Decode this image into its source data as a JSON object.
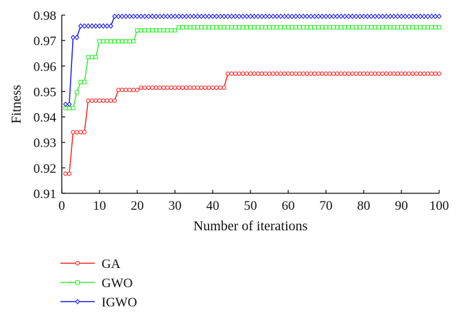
{
  "chart_data": {
    "type": "line",
    "title": "",
    "xlabel": "Number of iterations",
    "ylabel": "Fitness",
    "xlim": [
      0,
      100
    ],
    "ylim": [
      0.91,
      0.98
    ],
    "xticks": [
      "0",
      "10",
      "20",
      "30",
      "40",
      "50",
      "60",
      "70",
      "80",
      "90",
      "100"
    ],
    "yticks": [
      "0.91",
      "0.92",
      "0.93",
      "0.94",
      "0.95",
      "0.96",
      "0.97",
      "0.98"
    ],
    "grid": false,
    "legend_position": "bottom-left",
    "x": [
      1,
      2,
      3,
      4,
      5,
      6,
      7,
      8,
      9,
      10,
      11,
      12,
      13,
      14,
      15,
      16,
      17,
      18,
      19,
      20,
      21,
      22,
      23,
      24,
      25,
      26,
      27,
      28,
      29,
      30,
      31,
      32,
      33,
      34,
      35,
      36,
      37,
      38,
      39,
      40,
      41,
      42,
      43,
      44,
      45,
      46,
      47,
      48,
      49,
      50,
      51,
      52,
      53,
      54,
      55,
      56,
      57,
      58,
      59,
      60,
      61,
      62,
      63,
      64,
      65,
      66,
      67,
      68,
      69,
      70,
      71,
      72,
      73,
      74,
      75,
      76,
      77,
      78,
      79,
      80,
      81,
      82,
      83,
      84,
      85,
      86,
      87,
      88,
      89,
      90,
      91,
      92,
      93,
      94,
      95,
      96,
      97,
      98,
      99,
      100
    ],
    "series": [
      {
        "name": "GA",
        "color": "#ff2020",
        "marker": "circle",
        "values": [
          0.9177,
          0.9177,
          0.934,
          0.934,
          0.934,
          0.934,
          0.9464,
          0.9464,
          0.9464,
          0.9464,
          0.9464,
          0.9464,
          0.9464,
          0.9464,
          0.9506,
          0.9506,
          0.9506,
          0.9506,
          0.9506,
          0.9506,
          0.9515,
          0.9515,
          0.9515,
          0.9515,
          0.9515,
          0.9515,
          0.9515,
          0.9515,
          0.9515,
          0.9515,
          0.9515,
          0.9515,
          0.9515,
          0.9515,
          0.9515,
          0.9515,
          0.9515,
          0.9515,
          0.9515,
          0.9515,
          0.9515,
          0.9515,
          0.9515,
          0.957,
          0.957,
          0.957,
          0.957,
          0.957,
          0.957,
          0.957,
          0.957,
          0.957,
          0.957,
          0.957,
          0.957,
          0.957,
          0.957,
          0.957,
          0.957,
          0.957,
          0.957,
          0.957,
          0.957,
          0.957,
          0.957,
          0.957,
          0.957,
          0.957,
          0.957,
          0.957,
          0.957,
          0.957,
          0.957,
          0.957,
          0.957,
          0.957,
          0.957,
          0.957,
          0.957,
          0.957,
          0.957,
          0.957,
          0.957,
          0.957,
          0.957,
          0.957,
          0.957,
          0.957,
          0.957,
          0.957,
          0.957,
          0.957,
          0.957,
          0.957,
          0.957,
          0.957,
          0.957,
          0.957,
          0.957,
          0.957
        ]
      },
      {
        "name": "GWO",
        "color": "#33ee33",
        "marker": "square",
        "values": [
          0.9435,
          0.9435,
          0.9435,
          0.9497,
          0.9537,
          0.9537,
          0.9635,
          0.9635,
          0.9635,
          0.9697,
          0.9697,
          0.9697,
          0.9697,
          0.9697,
          0.9697,
          0.9697,
          0.9697,
          0.9697,
          0.9697,
          0.974,
          0.974,
          0.974,
          0.974,
          0.974,
          0.974,
          0.974,
          0.974,
          0.974,
          0.974,
          0.974,
          0.9752,
          0.9752,
          0.9752,
          0.9752,
          0.9752,
          0.9752,
          0.9752,
          0.9752,
          0.9752,
          0.9752,
          0.9752,
          0.9752,
          0.9752,
          0.9752,
          0.9752,
          0.9752,
          0.9752,
          0.9752,
          0.9752,
          0.9752,
          0.9752,
          0.9752,
          0.9752,
          0.9752,
          0.9752,
          0.9752,
          0.9752,
          0.9752,
          0.9752,
          0.9752,
          0.9752,
          0.9752,
          0.9752,
          0.9752,
          0.9752,
          0.9752,
          0.9752,
          0.9752,
          0.9752,
          0.9752,
          0.9752,
          0.9752,
          0.9752,
          0.9752,
          0.9752,
          0.9752,
          0.9752,
          0.9752,
          0.9752,
          0.9752,
          0.9752,
          0.9752,
          0.9752,
          0.9752,
          0.9752,
          0.9752,
          0.9752,
          0.9752,
          0.9752,
          0.9752,
          0.9752,
          0.9752,
          0.9752,
          0.9752,
          0.9752,
          0.9752,
          0.9752,
          0.9752,
          0.9752,
          0.9752
        ]
      },
      {
        "name": "IGWO",
        "color": "#1a1aee",
        "marker": "diamond",
        "values": [
          0.945,
          0.945,
          0.9712,
          0.9712,
          0.9757,
          0.9757,
          0.9757,
          0.9757,
          0.9757,
          0.9757,
          0.9757,
          0.9757,
          0.9757,
          0.9795,
          0.9795,
          0.9795,
          0.9795,
          0.9795,
          0.9795,
          0.9795,
          0.9795,
          0.9795,
          0.9795,
          0.9795,
          0.9795,
          0.9795,
          0.9795,
          0.9795,
          0.9795,
          0.9795,
          0.9795,
          0.9795,
          0.9795,
          0.9795,
          0.9795,
          0.9795,
          0.9795,
          0.9795,
          0.9795,
          0.9795,
          0.9795,
          0.9795,
          0.9795,
          0.9795,
          0.9795,
          0.9795,
          0.9795,
          0.9795,
          0.9795,
          0.9795,
          0.9795,
          0.9795,
          0.9795,
          0.9795,
          0.9795,
          0.9795,
          0.9795,
          0.9795,
          0.9795,
          0.9795,
          0.9795,
          0.9795,
          0.9795,
          0.9795,
          0.9795,
          0.9795,
          0.9795,
          0.9795,
          0.9795,
          0.9795,
          0.9795,
          0.9795,
          0.9795,
          0.9795,
          0.9795,
          0.9795,
          0.9795,
          0.9795,
          0.9795,
          0.9795,
          0.9795,
          0.9795,
          0.9795,
          0.9795,
          0.9795,
          0.9795,
          0.9795,
          0.9795,
          0.9795,
          0.9795,
          0.9795,
          0.9795,
          0.9795,
          0.9795,
          0.9795,
          0.9795,
          0.9795,
          0.9795,
          0.9795,
          0.9795
        ]
      }
    ]
  }
}
